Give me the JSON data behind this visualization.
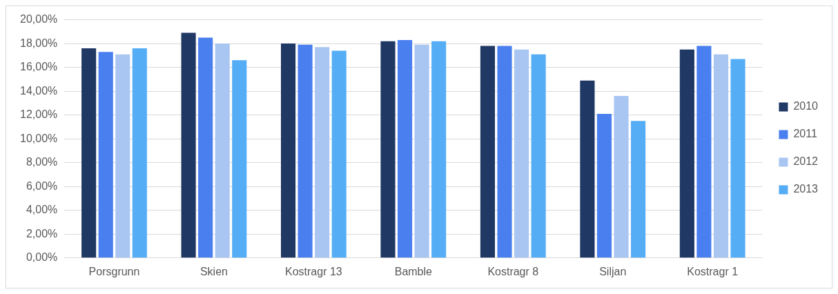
{
  "chart_data": {
    "type": "bar",
    "categories": [
      "Porsgrunn",
      "Skien",
      "Kostragr 13",
      "Bamble",
      "Kostragr 8",
      "Siljan",
      "Kostragr 1"
    ],
    "series": [
      {
        "name": "2010",
        "color": "#203864",
        "values": [
          17.6,
          18.9,
          18.0,
          18.2,
          17.8,
          14.9,
          17.5
        ]
      },
      {
        "name": "2011",
        "color": "#4a7ff0",
        "values": [
          17.3,
          18.5,
          17.9,
          18.3,
          17.8,
          12.1,
          17.8
        ]
      },
      {
        "name": "2012",
        "color": "#a9c6f2",
        "values": [
          17.1,
          18.0,
          17.7,
          17.9,
          17.5,
          13.6,
          17.1
        ]
      },
      {
        "name": "2013",
        "color": "#55adf5",
        "values": [
          17.6,
          16.6,
          17.4,
          18.2,
          17.1,
          11.5,
          16.7
        ]
      }
    ],
    "ylim": [
      0,
      20
    ],
    "yticks": [
      {
        "value": 0,
        "label": "0,00%"
      },
      {
        "value": 2,
        "label": "2,00%"
      },
      {
        "value": 4,
        "label": "4,00%"
      },
      {
        "value": 6,
        "label": "6,00%"
      },
      {
        "value": 8,
        "label": "8,00%"
      },
      {
        "value": 10,
        "label": "10,00%"
      },
      {
        "value": 12,
        "label": "12,00%"
      },
      {
        "value": 14,
        "label": "14,00%"
      },
      {
        "value": 16,
        "label": "16,00%"
      },
      {
        "value": 18,
        "label": "18,00%"
      },
      {
        "value": 20,
        "label": "20,00%"
      }
    ],
    "grid": "y",
    "legend": "right"
  }
}
